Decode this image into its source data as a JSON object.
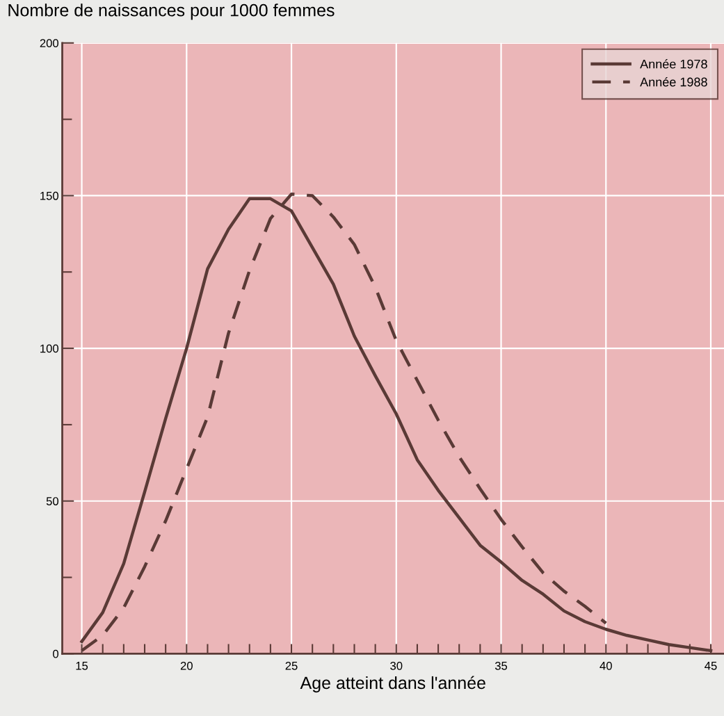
{
  "chart_data": {
    "type": "line",
    "title": "Nombre de naissances pour 1000 femmes",
    "xlabel": "Age atteint dans l'année",
    "x": [
      15,
      16,
      17,
      18,
      19,
      20,
      21,
      22,
      23,
      24,
      25,
      26,
      27,
      28,
      29,
      30,
      31,
      32,
      33,
      34,
      35,
      36,
      37,
      38,
      39,
      40,
      41,
      42,
      43,
      44,
      45
    ],
    "series": [
      {
        "name": "Année 1978",
        "color": "#5a3a36",
        "line_style": "solid",
        "values": [
          4,
          13.5,
          29.5,
          53,
          77,
          100,
          126,
          139,
          149,
          149,
          145,
          133,
          121,
          104,
          91,
          78.5,
          63.5,
          53.5,
          44.5,
          35.5,
          30,
          24,
          19.5,
          14,
          10.5,
          8,
          6,
          4.5,
          3,
          2,
          1
        ]
      },
      {
        "name": "Année 1988",
        "color": "#5a3a36",
        "line_style": "dashed",
        "x": [
          15,
          16,
          17,
          18,
          19,
          20,
          21,
          22,
          23,
          24,
          25,
          26,
          27,
          28,
          29,
          30,
          31,
          32,
          33,
          34,
          35,
          36,
          37,
          38,
          39,
          40
        ],
        "values": [
          1,
          6,
          15,
          28.5,
          43.5,
          60.5,
          77.5,
          105,
          125.5,
          142.5,
          150.5,
          150,
          143,
          134,
          120,
          102.5,
          89.5,
          76.5,
          64.5,
          54,
          44,
          35,
          26.5,
          20.5,
          15.5,
          10
        ]
      }
    ],
    "xlim": [
      14.07,
      45.63
    ],
    "ylim": [
      0,
      200
    ],
    "xticks": [
      15,
      {
        "value": 16,
        "label": null
      },
      {
        "value": 17,
        "label": null
      },
      {
        "value": 18,
        "label": null
      },
      {
        "value": 19,
        "label": null
      },
      20,
      {
        "value": 21,
        "label": null
      },
      {
        "value": 22,
        "label": null
      },
      {
        "value": 23,
        "label": null
      },
      {
        "value": 24,
        "label": null
      },
      25,
      {
        "value": 26,
        "label": null
      },
      {
        "value": 27,
        "label": null
      },
      {
        "value": 28,
        "label": null
      },
      {
        "value": 29,
        "label": null
      },
      30,
      {
        "value": 31,
        "label": null
      },
      {
        "value": 32,
        "label": null
      },
      {
        "value": 33,
        "label": null
      },
      {
        "value": 34,
        "label": null
      },
      35,
      {
        "value": 36,
        "label": null
      },
      {
        "value": 37,
        "label": null
      },
      {
        "value": 38,
        "label": null
      },
      {
        "value": 39,
        "label": null
      },
      40,
      {
        "value": 41,
        "label": null
      },
      {
        "value": 42,
        "label": null
      },
      {
        "value": 43,
        "label": null
      },
      {
        "value": 44,
        "label": null
      },
      45
    ],
    "yticks": [
      0,
      {
        "value": 25,
        "label": null
      },
      50,
      {
        "value": 75,
        "label": null
      },
      100,
      {
        "value": 125,
        "label": null
      },
      150,
      {
        "value": 175,
        "label": null
      },
      200
    ],
    "grid": true,
    "legend": "top right",
    "marker": "none"
  }
}
